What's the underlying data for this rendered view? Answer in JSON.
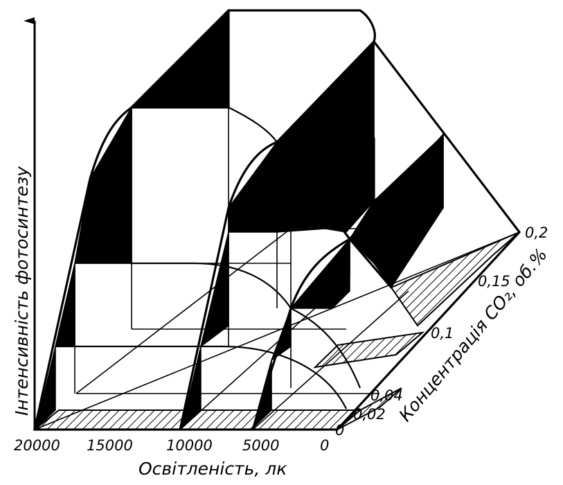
{
  "x_axis": {
    "title": "Освітленість, лк",
    "ticks": [
      "20000",
      "15000",
      "10000",
      "5000",
      "0"
    ]
  },
  "z_axis": {
    "title": "Концентрація CO₂, об.%",
    "ticks": [
      "0",
      "0,02",
      "0,04",
      "0,1",
      "0,15",
      "0,2"
    ]
  },
  "y_axis": {
    "title": "Інтенсивність фотосинтезу"
  }
}
